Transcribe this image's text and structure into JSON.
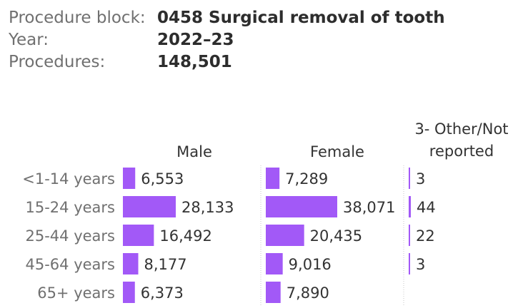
{
  "info": {
    "procedure_block_label": "Procedure block:",
    "procedure_block_value": "0458 Surgical removal of tooth",
    "year_label": "Year:",
    "year_value": "2022–23",
    "procedures_label": "Procedures:",
    "procedures_value": "148,501"
  },
  "colors": {
    "bar": "#a259f7",
    "divider": "#c8c8c8"
  },
  "chart_data": {
    "type": "bar",
    "orientation": "horizontal",
    "categories": [
      "<1-14 years",
      "15-24 years",
      "25-44 years",
      "45-64 years",
      "65+ years"
    ],
    "series": [
      {
        "name": "Male",
        "values": [
          6553,
          28133,
          16492,
          8177,
          6373
        ],
        "labels": [
          "6,553",
          "28,133",
          "16,492",
          "8,177",
          "6,373"
        ]
      },
      {
        "name": "Female",
        "values": [
          7289,
          38071,
          20435,
          9016,
          7890
        ],
        "labels": [
          "7,289",
          "38,071",
          "20,435",
          "9,016",
          "7,890"
        ]
      },
      {
        "name": "3- Other/Not reported",
        "name_lines": [
          "3- Other/Not",
          "reported"
        ],
        "values": [
          3,
          44,
          22,
          3,
          null
        ],
        "labels": [
          "3",
          "44",
          "22",
          "3",
          ""
        ]
      }
    ]
  }
}
